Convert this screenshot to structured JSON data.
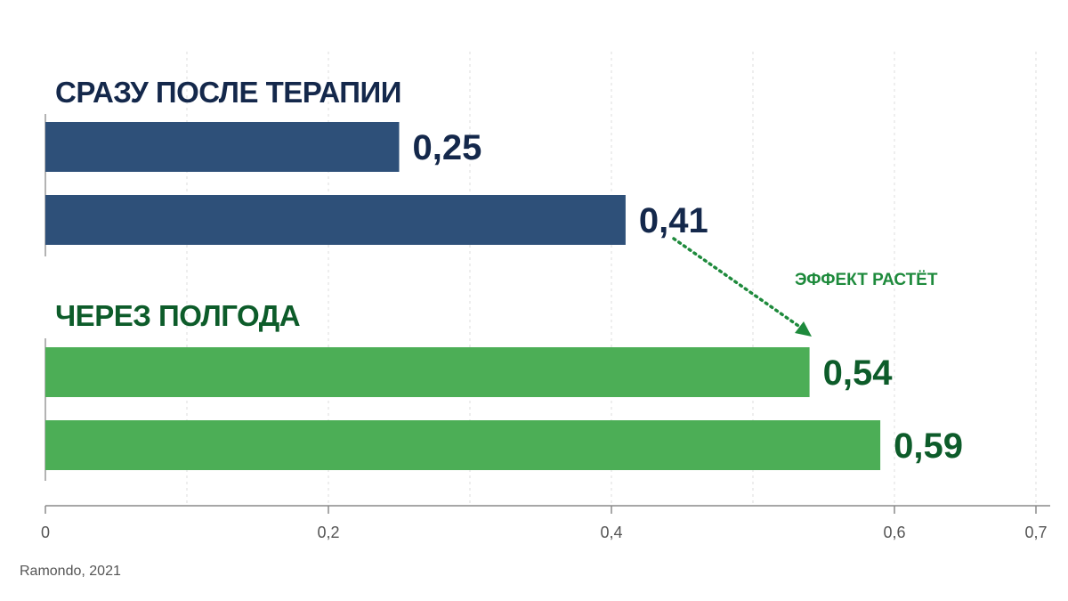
{
  "chart_data": {
    "type": "bar",
    "orientation": "horizontal",
    "xlim": [
      0,
      0.7
    ],
    "x_ticks": [
      "0",
      "0,2",
      "0,4",
      "0,6",
      "0,7"
    ],
    "x_tick_values": [
      0,
      0.2,
      0.4,
      0.6,
      0.7
    ],
    "grid": "vertical dashed",
    "groups": [
      {
        "title": "СРАЗУ ПОСЛЕ ТЕРАПИИ",
        "color": "#2e5079",
        "label_color": "#14284b",
        "values": [
          0.25,
          0.41
        ],
        "labels": [
          "0,25",
          "0,41"
        ]
      },
      {
        "title": "ЧЕРЕЗ ПОЛГОДА",
        "color": "#4cae56",
        "label_color": "#0d5c2a",
        "values": [
          0.54,
          0.59
        ],
        "labels": [
          "0,54",
          "0,59"
        ]
      }
    ],
    "annotation": {
      "text": "ЭФФЕКТ РАСТЁТ",
      "color": "#1e8a3c"
    }
  },
  "source": "Ramondo, 2021"
}
